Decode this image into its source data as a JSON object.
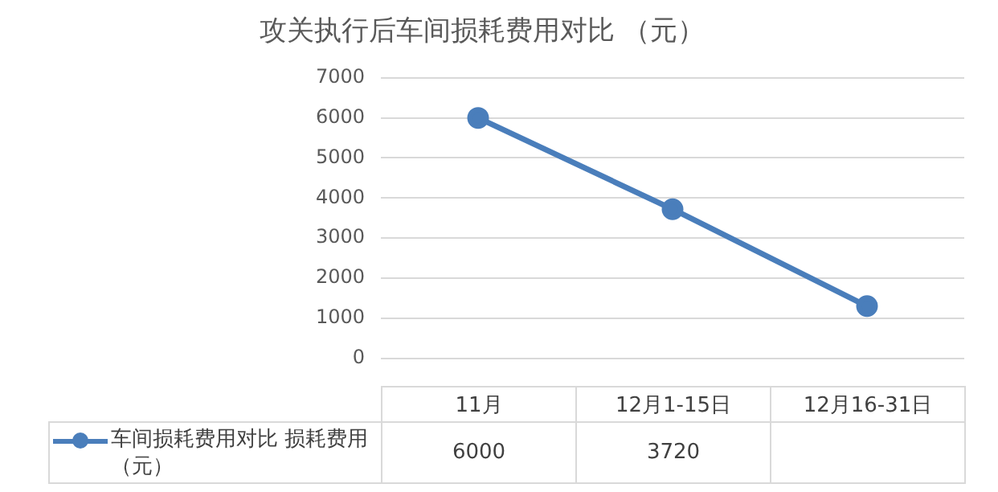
{
  "chart_data": {
    "type": "line",
    "title": "攻关执行后车间损耗费用对比 （元）",
    "categories": [
      "11月",
      "12月1-15日",
      "12月16-31日"
    ],
    "series": [
      {
        "name": "车间损耗费用对比 损耗费用（元）",
        "color": "#4a7ebb",
        "values": [
          6000,
          3720,
          1300
        ],
        "value_labels": [
          "6000",
          "3720",
          null
        ]
      }
    ],
    "ylim": [
      0,
      7000
    ],
    "yticks": [
      0,
      1000,
      2000,
      3000,
      4000,
      5000,
      6000,
      7000
    ],
    "grid": "y",
    "legend": "bottom",
    "marker": "circle",
    "line_style": "solid"
  }
}
